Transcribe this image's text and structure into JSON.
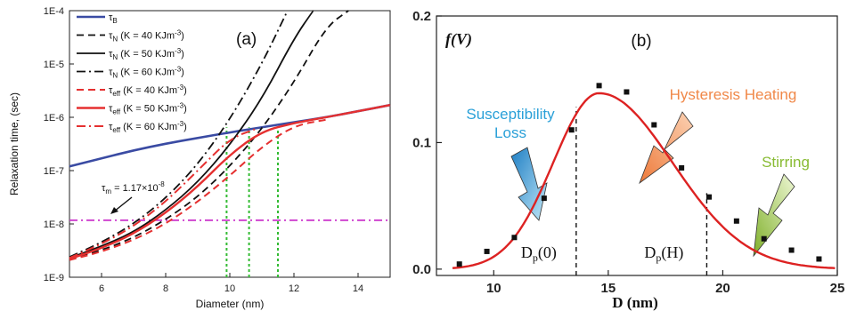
{
  "chart_data": [
    {
      "type": "line",
      "panel_label": "(a)",
      "xlabel": "Diameter (nm)",
      "ylabel": "Relaxation time, (sec)",
      "xlim": [
        5,
        15
      ],
      "ylim_log10": [
        -9,
        -4
      ],
      "y_scale": "log",
      "xticks": [
        "6",
        "8",
        "10",
        "12",
        "14"
      ],
      "yticks": [
        "1E-9",
        "1E-8",
        "1E-7",
        "1E-6",
        "1E-5",
        "1E-4"
      ],
      "legend_placement": "top-left",
      "series": [
        {
          "name": "τB",
          "color": "#3a4ba3",
          "dash": "solid",
          "width": 2.6,
          "x": [
            5,
            6,
            7,
            8,
            9,
            10,
            11,
            12,
            13,
            14,
            15
          ],
          "y": [
            1.2e-07,
            1.7e-07,
            2.4e-07,
            3.2e-07,
            4.1e-07,
            5.2e-07,
            6.5e-07,
            8.1e-07,
            1e-06,
            1.3e-06,
            1.7e-06
          ]
        },
        {
          "name": "τN (K = 40 KJm-3)",
          "color": "#111111",
          "dash": "8 5",
          "width": 1.8,
          "x": [
            5,
            6,
            7,
            8,
            9,
            10,
            11,
            12,
            13,
            13.7
          ],
          "y": [
            2.2e-09,
            3.2e-09,
            5.5e-09,
            1.2e-08,
            3.2e-08,
            1.2e-07,
            6e-07,
            4.5e-06,
            5e-05,
            0.0001
          ]
        },
        {
          "name": "τN (K = 50 KJm-3)",
          "color": "#111111",
          "dash": "solid",
          "width": 1.8,
          "x": [
            5,
            6,
            7,
            8,
            9,
            10,
            11,
            12,
            12.6
          ],
          "y": [
            2.3e-09,
            3.8e-09,
            7e-09,
            1.8e-08,
            6e-08,
            3e-07,
            2.2e-06,
            3e-05,
            0.0001
          ]
        },
        {
          "name": "τN (K = 60 KJm-3)",
          "color": "#111111",
          "dash": "10 4 2 4",
          "width": 1.8,
          "x": [
            5,
            6,
            7,
            8,
            9,
            10,
            11,
            11.8
          ],
          "y": [
            2.4e-09,
            4.5e-09,
            1e-08,
            3e-08,
            1.3e-07,
            9e-07,
            1e-05,
            0.0001
          ]
        },
        {
          "name": "τeff (K = 40 KJm-3)",
          "color": "#e53030",
          "dash": "8 5",
          "width": 2.0,
          "x": [
            5,
            6,
            7,
            8,
            9,
            10,
            11,
            12,
            13
          ],
          "y": [
            2.1e-09,
            3e-09,
            5e-09,
            1e-08,
            2.6e-08,
            8e-08,
            2.8e-07,
            7e-07,
            9e-07
          ]
        },
        {
          "name": "τeff (K = 50 KJm-3)",
          "color": "#e53030",
          "dash": "solid",
          "width": 2.4,
          "x": [
            5,
            6,
            7,
            8,
            9,
            10,
            11,
            12,
            13,
            14,
            15
          ],
          "y": [
            2.2e-09,
            3.5e-09,
            6.5e-09,
            1.6e-08,
            5e-08,
            2e-07,
            5.5e-07,
            7.8e-07,
            1e-06,
            1.3e-06,
            1.7e-06
          ]
        },
        {
          "name": "τeff (K = 60 KJm-3)",
          "color": "#e53030",
          "dash": "10 4 2 4",
          "width": 2.0,
          "x": [
            5,
            6,
            7,
            8,
            9,
            10,
            10.8
          ],
          "y": [
            2.3e-09,
            4.2e-09,
            9e-09,
            2.6e-08,
            1e-07,
            4e-07,
            6e-07
          ]
        }
      ],
      "reference_lines": [
        {
          "type": "horizontal",
          "y": 1.17e-08,
          "color": "#cc33cc",
          "label": "τm = 1.17×10-8"
        },
        {
          "type": "vertical",
          "x": 9.9,
          "color": "#33bb33"
        },
        {
          "type": "vertical",
          "x": 10.6,
          "color": "#33bb33"
        },
        {
          "type": "vertical",
          "x": 11.5,
          "color": "#33bb33"
        }
      ]
    },
    {
      "type": "scatter",
      "panel_label": "(b)",
      "function_label": "f(V)",
      "xlabel": "D (nm)",
      "ylabel": "",
      "xlim": [
        7.5,
        25
      ],
      "ylim": [
        -0.005,
        0.2
      ],
      "xticks": [
        "10",
        "15",
        "20",
        "25"
      ],
      "yticks": [
        "0.0",
        "0.1",
        "0.2"
      ],
      "points": {
        "x": [
          8.5,
          9.7,
          10.9,
          12.2,
          13.4,
          14.6,
          15.8,
          17.0,
          18.2,
          19.4,
          20.6,
          21.8,
          23.0,
          24.2
        ],
        "y": [
          0.004,
          0.014,
          0.025,
          0.056,
          0.11,
          0.145,
          0.14,
          0.114,
          0.08,
          0.057,
          0.038,
          0.024,
          0.015,
          0.008
        ]
      },
      "fit_curve": {
        "color": "#dd2222",
        "peak_x": 14.6,
        "peak_y": 0.139,
        "sigma_left": 2.0,
        "sigma_right": 3.2
      },
      "markers": [
        {
          "x": 13.6,
          "label": "Dp(0)"
        },
        {
          "x": 19.3,
          "label": "Dp(H)"
        }
      ],
      "annotations": [
        {
          "text": "Susceptibility",
          "color": "#2aa0d8"
        },
        {
          "text": "Loss",
          "color": "#2aa0d8"
        },
        {
          "text": "Hysteresis Heating",
          "color": "#f08848"
        },
        {
          "text": "Stirring",
          "color": "#88bb33"
        }
      ]
    }
  ]
}
